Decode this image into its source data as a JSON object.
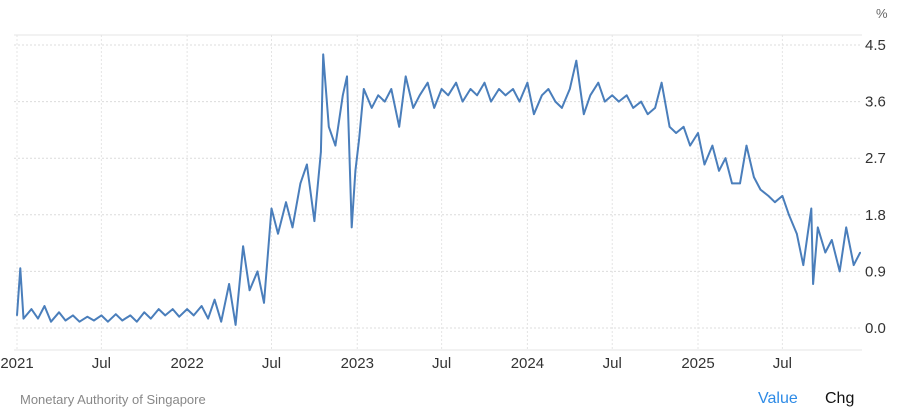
{
  "chart_data": {
    "type": "line",
    "title": "",
    "xlabel": "",
    "ylabel": "",
    "unit": "%",
    "ylim": [
      0,
      4.5
    ],
    "yticks": [
      "0.0",
      "0.9",
      "1.8",
      "2.7",
      "3.6",
      "4.5"
    ],
    "xticks": [
      {
        "label": "2021",
        "date": "2021-01-01"
      },
      {
        "label": "Jul",
        "date": "2021-07-01"
      },
      {
        "label": "2022",
        "date": "2022-01-01"
      },
      {
        "label": "Jul",
        "date": "2022-07-01"
      },
      {
        "label": "2023",
        "date": "2023-01-01"
      },
      {
        "label": "Jul",
        "date": "2023-07-01"
      },
      {
        "label": "2024",
        "date": "2024-01-01"
      },
      {
        "label": "Jul",
        "date": "2024-07-01"
      },
      {
        "label": "2025",
        "date": "2025-01-01"
      },
      {
        "label": "Jul",
        "date": "2025-07-01"
      }
    ],
    "grid": true,
    "line_color": "#4a7ebb",
    "series": [
      {
        "points": [
          [
            "2021-01-01",
            0.2
          ],
          [
            "2021-01-08",
            0.95
          ],
          [
            "2021-01-15",
            0.15
          ],
          [
            "2021-02-01",
            0.3
          ],
          [
            "2021-02-15",
            0.15
          ],
          [
            "2021-03-01",
            0.35
          ],
          [
            "2021-03-15",
            0.1
          ],
          [
            "2021-04-01",
            0.25
          ],
          [
            "2021-04-15",
            0.12
          ],
          [
            "2021-05-01",
            0.2
          ],
          [
            "2021-05-15",
            0.1
          ],
          [
            "2021-06-01",
            0.18
          ],
          [
            "2021-06-15",
            0.12
          ],
          [
            "2021-07-01",
            0.2
          ],
          [
            "2021-07-15",
            0.1
          ],
          [
            "2021-08-01",
            0.22
          ],
          [
            "2021-08-15",
            0.12
          ],
          [
            "2021-09-01",
            0.2
          ],
          [
            "2021-09-15",
            0.1
          ],
          [
            "2021-10-01",
            0.25
          ],
          [
            "2021-10-15",
            0.15
          ],
          [
            "2021-11-01",
            0.3
          ],
          [
            "2021-11-15",
            0.2
          ],
          [
            "2021-12-01",
            0.3
          ],
          [
            "2021-12-15",
            0.18
          ],
          [
            "2022-01-01",
            0.3
          ],
          [
            "2022-01-15",
            0.2
          ],
          [
            "2022-02-01",
            0.35
          ],
          [
            "2022-02-15",
            0.15
          ],
          [
            "2022-03-01",
            0.45
          ],
          [
            "2022-03-15",
            0.1
          ],
          [
            "2022-04-01",
            0.7
          ],
          [
            "2022-04-15",
            0.05
          ],
          [
            "2022-05-01",
            1.3
          ],
          [
            "2022-05-15",
            0.6
          ],
          [
            "2022-06-01",
            0.9
          ],
          [
            "2022-06-15",
            0.4
          ],
          [
            "2022-07-01",
            1.9
          ],
          [
            "2022-07-15",
            1.5
          ],
          [
            "2022-08-01",
            2.0
          ],
          [
            "2022-08-15",
            1.6
          ],
          [
            "2022-09-01",
            2.3
          ],
          [
            "2022-09-15",
            2.6
          ],
          [
            "2022-10-01",
            1.7
          ],
          [
            "2022-10-15",
            2.8
          ],
          [
            "2022-10-20",
            4.35
          ],
          [
            "2022-11-01",
            3.2
          ],
          [
            "2022-11-15",
            2.9
          ],
          [
            "2022-12-01",
            3.7
          ],
          [
            "2022-12-10",
            4.0
          ],
          [
            "2022-12-20",
            1.6
          ],
          [
            "2022-12-28",
            2.5
          ],
          [
            "2023-01-05",
            3.0
          ],
          [
            "2023-01-15",
            3.8
          ],
          [
            "2023-02-01",
            3.5
          ],
          [
            "2023-02-15",
            3.7
          ],
          [
            "2023-03-01",
            3.6
          ],
          [
            "2023-03-15",
            3.8
          ],
          [
            "2023-04-01",
            3.2
          ],
          [
            "2023-04-15",
            4.0
          ],
          [
            "2023-05-01",
            3.5
          ],
          [
            "2023-05-15",
            3.7
          ],
          [
            "2023-06-01",
            3.9
          ],
          [
            "2023-06-15",
            3.5
          ],
          [
            "2023-07-01",
            3.8
          ],
          [
            "2023-07-15",
            3.7
          ],
          [
            "2023-08-01",
            3.9
          ],
          [
            "2023-08-15",
            3.6
          ],
          [
            "2023-09-01",
            3.8
          ],
          [
            "2023-09-15",
            3.7
          ],
          [
            "2023-10-01",
            3.9
          ],
          [
            "2023-10-15",
            3.6
          ],
          [
            "2023-11-01",
            3.8
          ],
          [
            "2023-11-15",
            3.7
          ],
          [
            "2023-12-01",
            3.8
          ],
          [
            "2023-12-15",
            3.6
          ],
          [
            "2024-01-01",
            3.9
          ],
          [
            "2024-01-15",
            3.4
          ],
          [
            "2024-02-01",
            3.7
          ],
          [
            "2024-02-15",
            3.8
          ],
          [
            "2024-03-01",
            3.6
          ],
          [
            "2024-03-15",
            3.5
          ],
          [
            "2024-04-01",
            3.8
          ],
          [
            "2024-04-15",
            4.25
          ],
          [
            "2024-05-01",
            3.4
          ],
          [
            "2024-05-15",
            3.7
          ],
          [
            "2024-06-01",
            3.9
          ],
          [
            "2024-06-15",
            3.6
          ],
          [
            "2024-07-01",
            3.7
          ],
          [
            "2024-07-15",
            3.6
          ],
          [
            "2024-08-01",
            3.7
          ],
          [
            "2024-08-15",
            3.5
          ],
          [
            "2024-09-01",
            3.6
          ],
          [
            "2024-09-15",
            3.4
          ],
          [
            "2024-10-01",
            3.5
          ],
          [
            "2024-10-15",
            3.9
          ],
          [
            "2024-11-01",
            3.2
          ],
          [
            "2024-11-15",
            3.1
          ],
          [
            "2024-12-01",
            3.2
          ],
          [
            "2024-12-15",
            2.9
          ],
          [
            "2025-01-01",
            3.1
          ],
          [
            "2025-01-15",
            2.6
          ],
          [
            "2025-02-01",
            2.9
          ],
          [
            "2025-02-15",
            2.5
          ],
          [
            "2025-03-01",
            2.7
          ],
          [
            "2025-03-15",
            2.3
          ],
          [
            "2025-04-01",
            2.3
          ],
          [
            "2025-04-15",
            2.9
          ],
          [
            "2025-05-01",
            2.4
          ],
          [
            "2025-05-15",
            2.2
          ],
          [
            "2025-06-01",
            2.1
          ],
          [
            "2025-06-15",
            2.0
          ],
          [
            "2025-07-01",
            2.1
          ],
          [
            "2025-07-15",
            1.8
          ],
          [
            "2025-08-01",
            1.5
          ],
          [
            "2025-08-15",
            1.0
          ],
          [
            "2025-09-01",
            1.9
          ],
          [
            "2025-09-05",
            0.7
          ],
          [
            "2025-09-15",
            1.6
          ],
          [
            "2025-10-01",
            1.2
          ],
          [
            "2025-10-15",
            1.4
          ],
          [
            "2025-11-01",
            0.9
          ],
          [
            "2025-11-15",
            1.6
          ],
          [
            "2025-12-01",
            1.0
          ],
          [
            "2025-12-15",
            1.2
          ]
        ]
      }
    ]
  },
  "footer": {
    "source": "Monetary Authority of Singapore",
    "value_label": "Value",
    "chg_label": "Chg"
  }
}
